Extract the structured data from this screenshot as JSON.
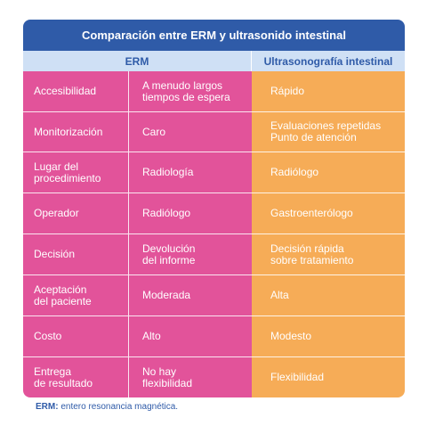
{
  "title": "Comparación entre ERM y ultrasonido intestinal",
  "columns": {
    "erm": "ERM",
    "ultrasound": "Ultrasonografía intestinal"
  },
  "rows": [
    {
      "label": "Accesibilidad",
      "erm": "A menudo largos\ntiempos de espera",
      "ultrasound": "Rápido"
    },
    {
      "label": "Monitorización",
      "erm": "Caro",
      "ultrasound": "Evaluaciones repetidas\nPunto de atención"
    },
    {
      "label": "Lugar del\nprocedimiento",
      "erm": "Radiología",
      "ultrasound": "Radiólogo"
    },
    {
      "label": "Operador",
      "erm": "Radiólogo",
      "ultrasound": "Gastroenterólogo"
    },
    {
      "label": "Decisión",
      "erm": "Devolución\ndel informe",
      "ultrasound": "Decisión rápida\nsobre tratamiento"
    },
    {
      "label": "Aceptación\ndel paciente",
      "erm": "Moderada",
      "ultrasound": "Alta"
    },
    {
      "label": "Costo",
      "erm": "Alto",
      "ultrasound": "Modesto"
    },
    {
      "label": "Entrega\nde resultado",
      "erm": "No hay\nflexibilidad",
      "ultrasound": "Flexibilidad"
    }
  ],
  "footnote": {
    "abbr": "ERM:",
    "text": " entero resonancia magnética."
  },
  "colors": {
    "header": "#2f5ba8",
    "subheader": "#cfe0f5",
    "erm": "#e2539a",
    "ultrasound": "#f6ac57"
  }
}
